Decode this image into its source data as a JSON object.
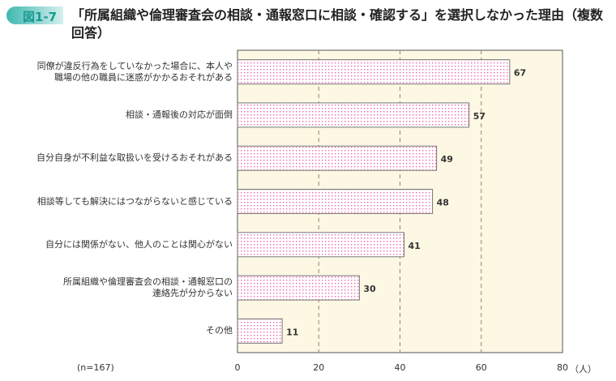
{
  "figure_label": "図1-7",
  "title": "「所属組織や倫理審査会の相談・通報窓口に相談・確認する」を選択しなかった理由（複数回答）",
  "chart_data": {
    "type": "bar",
    "orientation": "horizontal",
    "categories": [
      "同僚が違反行為をしていなかった場合に、本人や\n職場の他の職員に迷惑がかかるおそれがある",
      "相談・通報後の対応が面倒",
      "自分自身が不利益な取扱いを受けるおそれがある",
      "相談等しても解決にはつながらないと感じている",
      "自分には関係がない、他人のことは関心がない",
      "所属組織や倫理審査会の相談・通報窓口の\n連絡先が分からない",
      "その他"
    ],
    "values": [
      67,
      57,
      49,
      48,
      41,
      30,
      11
    ],
    "xlim": [
      0,
      80
    ],
    "ticks": [
      0,
      20,
      40,
      60,
      80
    ],
    "unit": "（人）",
    "note": "(n=167)",
    "grid": "vertical dashed",
    "colors": {
      "plot_bg": "#fdf8e4",
      "bar_dots": "#f06ab0",
      "bar_border": "#777777",
      "grid": "#a08060"
    }
  }
}
